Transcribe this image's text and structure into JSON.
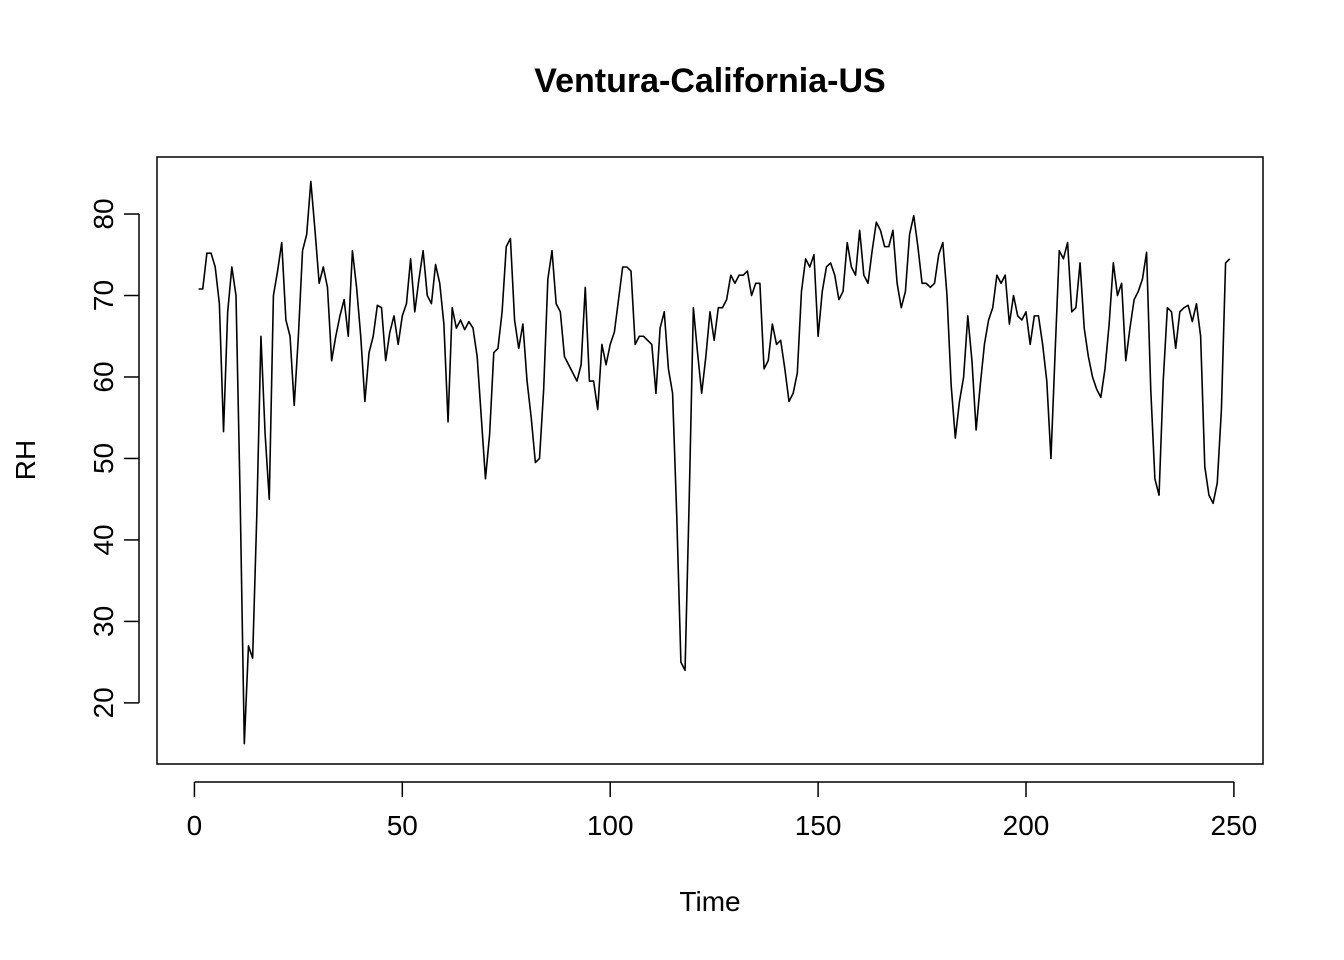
{
  "chart_data": {
    "type": "line",
    "title": "Ventura-California-US",
    "xlabel": "Time",
    "ylabel": "RH",
    "xlim": [
      -9,
      257
    ],
    "ylim": [
      12.5,
      87
    ],
    "x_ticks": [
      0,
      50,
      100,
      150,
      200,
      250
    ],
    "y_ticks": [
      20,
      30,
      40,
      50,
      60,
      70,
      80
    ],
    "grid": false,
    "legend": "none",
    "line_color": "#000000",
    "series": [
      {
        "x_start": 1,
        "values": [
          70.8,
          70.8,
          75.2,
          75.2,
          73.5,
          69.0,
          53.3,
          68.0,
          73.5,
          70.0,
          45.0,
          15.0,
          27.0,
          25.5,
          43.0,
          65.0,
          53.0,
          45.0,
          70.0,
          73.0,
          76.5,
          67.0,
          65.0,
          56.5,
          65.0,
          75.5,
          77.5,
          84.0,
          78.0,
          71.5,
          73.5,
          71.0,
          62.0,
          65.0,
          67.5,
          69.5,
          65.0,
          75.5,
          71.0,
          65.0,
          57.0,
          63.0,
          65.0,
          68.8,
          68.5,
          62.0,
          65.5,
          67.5,
          64.0,
          67.5,
          69.0,
          74.5,
          68.0,
          72.0,
          75.5,
          70.0,
          69.0,
          73.8,
          71.5,
          66.5,
          54.5,
          68.5,
          66.0,
          67.0,
          65.8,
          66.8,
          66.0,
          62.5,
          55.0,
          47.5,
          53.0,
          63.0,
          63.5,
          68.0,
          76.0,
          77.0,
          67.0,
          63.5,
          66.5,
          59.5,
          55.0,
          49.5,
          50.0,
          58.5,
          72.0,
          75.5,
          69.0,
          68.0,
          62.5,
          61.5,
          60.5,
          59.5,
          61.5,
          71.0,
          59.5,
          59.5,
          56.0,
          64.0,
          61.5,
          64.0,
          65.5,
          69.5,
          73.5,
          73.5,
          73.0,
          64.0,
          65.0,
          65.0,
          64.5,
          64.0,
          58.0,
          66.0,
          68.0,
          61.0,
          58.0,
          43.0,
          25.0,
          24.0,
          45.0,
          68.5,
          63.0,
          58.0,
          62.5,
          68.0,
          64.5,
          68.5,
          68.5,
          69.5,
          72.5,
          71.5,
          72.5,
          72.5,
          73.0,
          70.0,
          71.5,
          71.5,
          61.0,
          62.0,
          66.5,
          64.0,
          64.5,
          61.0,
          57.0,
          58.0,
          60.5,
          70.5,
          74.5,
          73.5,
          75.0,
          65.0,
          70.5,
          73.5,
          74.0,
          72.5,
          69.5,
          70.5,
          76.5,
          73.5,
          72.5,
          78.0,
          72.5,
          71.5,
          75.5,
          79.0,
          78.0,
          76.0,
          76.0,
          78.0,
          71.5,
          68.5,
          70.5,
          77.5,
          79.8,
          76.0,
          71.5,
          71.5,
          71.0,
          71.5,
          75.0,
          76.5,
          70.0,
          59.0,
          52.5,
          57.0,
          60.0,
          67.5,
          62.0,
          53.5,
          59.0,
          64.0,
          67.0,
          68.5,
          72.5,
          71.5,
          72.5,
          66.5,
          70.0,
          67.5,
          67.0,
          68.0,
          64.0,
          67.5,
          67.5,
          64.0,
          59.5,
          50.0,
          63.0,
          75.5,
          74.5,
          76.5,
          68.0,
          68.5,
          74.0,
          66.0,
          62.5,
          60.0,
          58.5,
          57.5,
          61.0,
          66.5,
          74.0,
          70.0,
          71.5,
          62.0,
          66.0,
          69.5,
          70.5,
          72.0,
          75.3,
          58.5,
          47.5,
          45.5,
          59.5,
          68.5,
          68.0,
          63.5,
          68.0,
          68.5,
          68.8,
          66.8,
          69.0,
          65.0,
          49.0,
          45.5,
          44.5,
          47.0,
          56.0,
          74.0,
          74.5
        ]
      }
    ]
  }
}
